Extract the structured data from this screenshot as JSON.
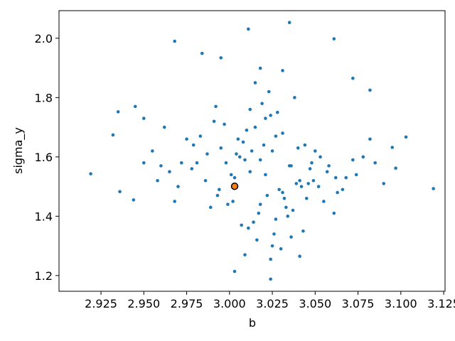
{
  "chart_data": {
    "type": "scatter",
    "xlabel": "b",
    "ylabel": "sigma_y",
    "xlim": [
      2.9005,
      3.1258
    ],
    "ylim": [
      1.147,
      2.093
    ],
    "xticks": [
      2.925,
      {
        "value": 2.95,
        "label": "2.950"
      },
      2.975,
      {
        "value": 3.0,
        "label": "3.000"
      },
      3.025,
      {
        "value": 3.05,
        "label": "3.050"
      },
      3.075,
      {
        "value": 3.1,
        "label": "3.100"
      },
      3.125
    ],
    "yticks": [
      1.2,
      1.4,
      1.6,
      1.8,
      {
        "value": 2.0,
        "label": "2.0"
      }
    ],
    "grid": false,
    "series": [
      {
        "color": "#1f77b4",
        "x": [
          3.012,
          3.025,
          3.031,
          2.998,
          3.041,
          3.005,
          3.018,
          3.036,
          2.987,
          3.052,
          3.027,
          3.009,
          3.044,
          2.993,
          3.021,
          3.015,
          3.062,
          2.978,
          3.033,
          3.006,
          3.039,
          3.011,
          2.995,
          3.048,
          3.024,
          3.002,
          3.057,
          2.983,
          3.029,
          3.017,
          3.035,
          2.991,
          3.045,
          3.013,
          3.068,
          2.972,
          3.026,
          3.008,
          3.042,
          3.019,
          2.999,
          3.053,
          3.031,
          2.986,
          3.014,
          3.047,
          3.022,
          3.004,
          3.072,
          2.965,
          3.037,
          3.01,
          3.028,
          2.994,
          3.055,
          3.016,
          3.04,
          2.981,
          3.023,
          3.034,
          3.001,
          3.063,
          2.975,
          3.03,
          3.012,
          3.046,
          2.989,
          3.02,
          3.058,
          3.007,
          3.038,
          2.997,
          3.025,
          3.05,
          2.97,
          3.015,
          3.043,
          3.003,
          3.078,
          2.96,
          3.032,
          3.018,
          2.992,
          3.061,
          3.027,
          3.009,
          3.049,
          2.979,
          3.036,
          3.021,
          3.085,
          2.955,
          3.066,
          2.962,
          3.074,
          2.968,
          3.082,
          2.958,
          3.09,
          2.95,
          2.919,
          3.119,
          3.035,
          3.011,
          3.061,
          2.968,
          2.984,
          2.995,
          3.024,
          3.003,
          2.935,
          2.932,
          2.936,
          3.103,
          3.095,
          3.097,
          2.945,
          2.95,
          2.944,
          3.072,
          3.082,
          3.018,
          3.031,
          3.024,
          3.041
        ],
        "values": [
          1.55,
          1.62,
          1.48,
          1.58,
          1.52,
          1.66,
          1.44,
          1.57,
          1.61,
          1.5,
          1.39,
          1.59,
          1.64,
          1.47,
          1.54,
          1.7,
          1.53,
          1.56,
          1.43,
          1.6,
          1.51,
          1.36,
          1.63,
          1.58,
          1.74,
          1.45,
          1.55,
          1.67,
          1.49,
          1.41,
          1.57,
          1.72,
          1.46,
          1.62,
          1.53,
          1.58,
          1.34,
          1.65,
          1.5,
          1.78,
          1.44,
          1.6,
          1.68,
          1.52,
          1.38,
          1.56,
          1.47,
          1.61,
          1.59,
          1.55,
          1.42,
          1.69,
          1.75,
          1.49,
          1.45,
          1.32,
          1.63,
          1.58,
          1.82,
          1.4,
          1.54,
          1.48,
          1.66,
          1.29,
          1.76,
          1.51,
          1.43,
          1.64,
          1.57,
          1.37,
          1.8,
          1.71,
          1.3,
          1.62,
          1.5,
          1.85,
          1.35,
          1.53,
          1.6,
          1.57,
          1.46,
          1.59,
          1.77,
          1.41,
          1.67,
          1.27,
          1.52,
          1.64,
          1.33,
          1.73,
          1.58,
          1.62,
          1.49,
          1.7,
          1.54,
          1.45,
          1.66,
          1.52,
          1.51,
          1.58,
          1.543,
          1.493,
          2.053,
          2.031,
          1.998,
          1.99,
          1.949,
          1.934,
          1.188,
          1.214,
          1.752,
          1.674,
          1.483,
          1.667,
          1.632,
          1.562,
          1.77,
          1.73,
          1.455,
          1.865,
          1.825,
          1.899,
          1.891,
          1.255,
          1.265
        ]
      },
      {
        "color": "#ff7f0e",
        "edgecolor": "#000000",
        "x": [
          3.003
        ],
        "values": [
          1.501
        ]
      }
    ]
  }
}
